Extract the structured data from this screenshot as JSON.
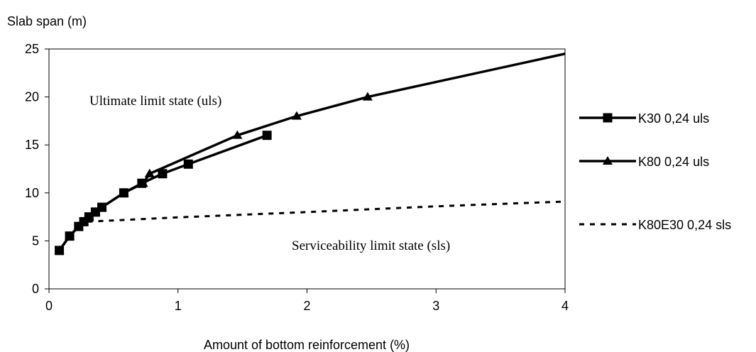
{
  "chart_data": {
    "type": "line",
    "title": "",
    "ylabel": "Slab span (m)",
    "xlabel": "Amount of bottom reinforcement (%)",
    "xlim": [
      0,
      4
    ],
    "ylim": [
      0,
      25
    ],
    "x_ticks": [
      0,
      1,
      2,
      3,
      4
    ],
    "y_ticks": [
      0,
      5,
      10,
      15,
      20,
      25
    ],
    "grid": false,
    "legend_position": "right",
    "annotations": [
      {
        "id": "uls",
        "text": "Ultimate limit state (uls)"
      },
      {
        "id": "sls",
        "text": "Serviceability limit state (sls)"
      }
    ],
    "series": [
      {
        "name": "K30 0,24 uls",
        "marker": "square",
        "line_style": "solid",
        "color": "#000000",
        "x": [
          0.08,
          0.16,
          0.23,
          0.27,
          0.31,
          0.36,
          0.41,
          0.58,
          0.72,
          0.88,
          1.08,
          1.69
        ],
        "y": [
          4,
          5.5,
          6.5,
          7,
          7.5,
          8,
          8.5,
          10,
          11,
          12,
          13,
          16
        ]
      },
      {
        "name": "K80 0,24 uls",
        "marker": "triangle",
        "line_style": "solid",
        "color": "#000000",
        "x": [
          0.08,
          0.16,
          0.23,
          0.27,
          0.31,
          0.36,
          0.41,
          0.58,
          0.73,
          0.78,
          1.46,
          1.92,
          2.47,
          4.0
        ],
        "y": [
          4,
          5.5,
          6.5,
          7,
          7.5,
          8,
          8.5,
          10,
          11,
          12,
          16,
          18,
          20,
          24.5
        ]
      },
      {
        "name": "K80E30 0,24 sls",
        "marker": "none",
        "line_style": "dashed",
        "color": "#000000",
        "x": [
          0.3,
          1.0,
          2.0,
          3.0,
          4.0
        ],
        "y": [
          7.0,
          7.45,
          8.0,
          8.6,
          9.1
        ]
      }
    ]
  }
}
